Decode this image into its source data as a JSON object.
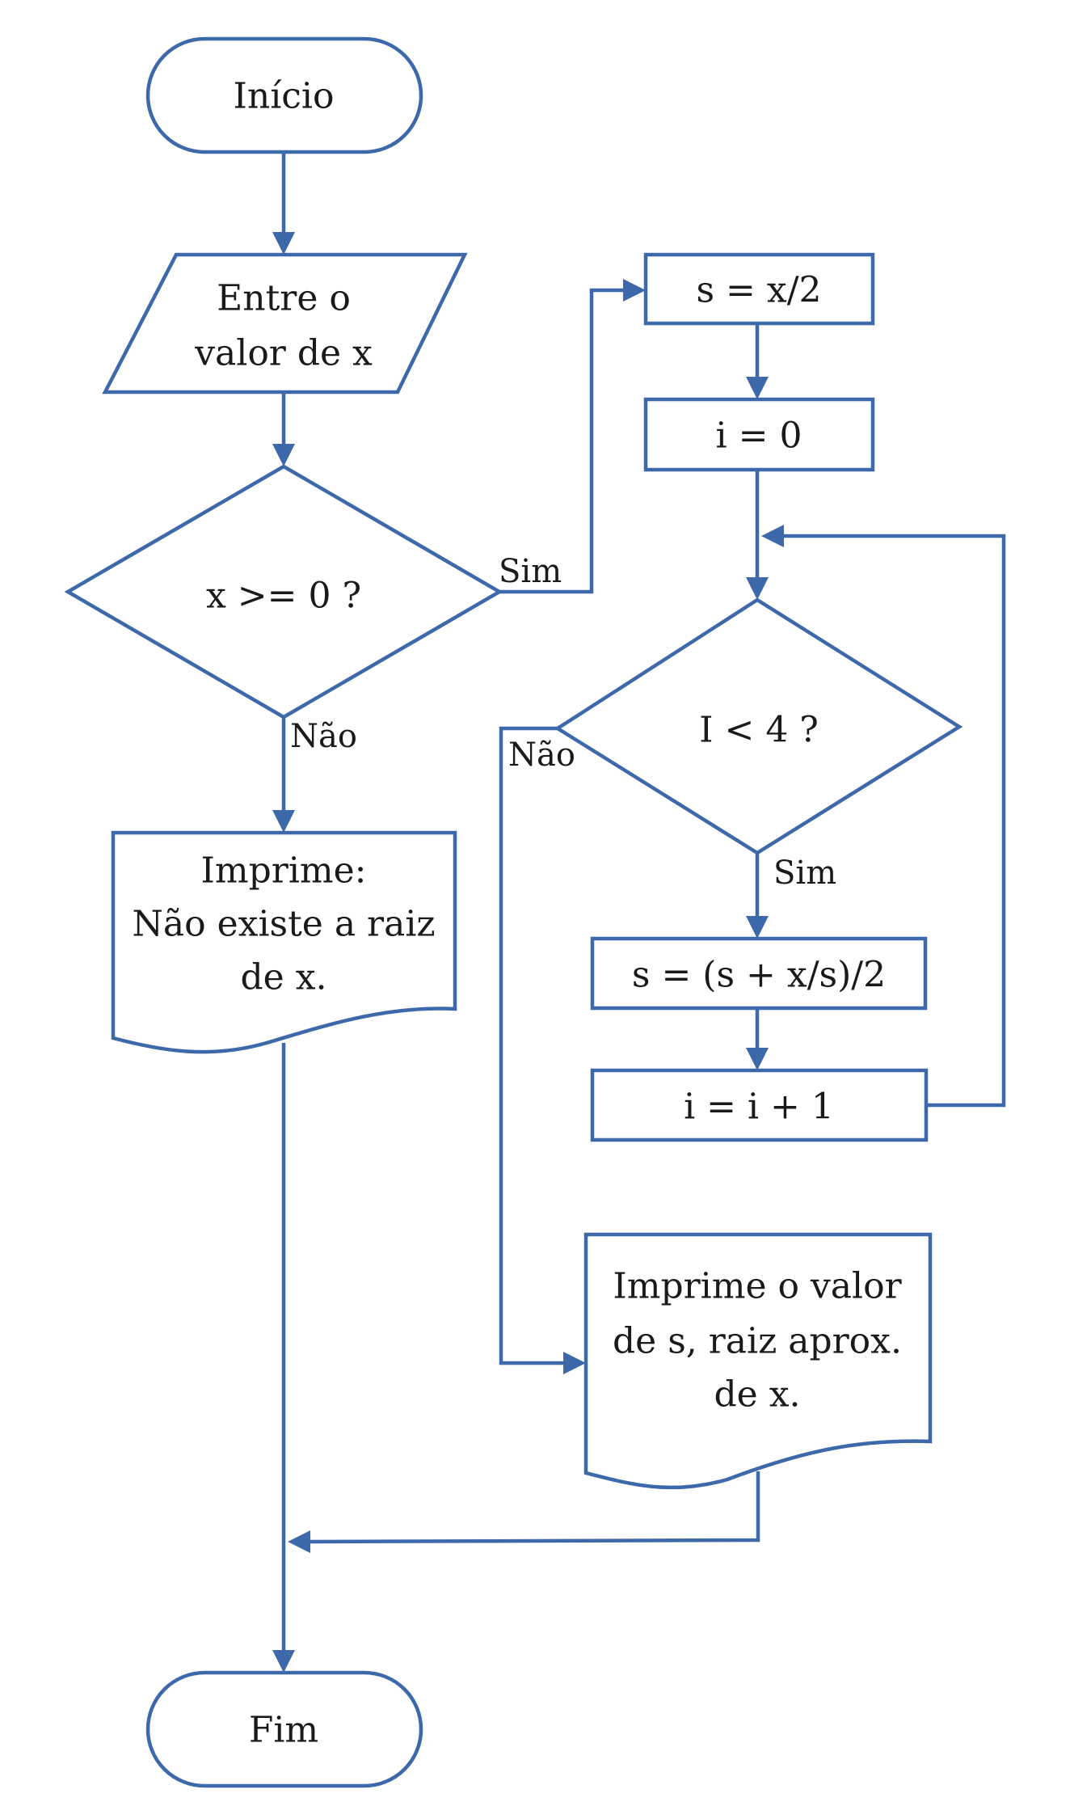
{
  "colors": {
    "stroke": "#3d69aa",
    "fill": "#ffffff",
    "text": "#1a1a1a"
  },
  "nodes": {
    "start": "Início",
    "input_line1": "Entre o",
    "input_line2": "valor de x",
    "decision_x": "x >= 0 ?",
    "print_no_root_line1": "Imprime:",
    "print_no_root_line2": "Não existe a raiz",
    "print_no_root_line3": "de x.",
    "assign_s": "s = x/2",
    "assign_i": "i = 0",
    "decision_i": "I < 4 ?",
    "update_s": "s = (s + x/s)/2",
    "increment_i": "i = i + 1",
    "print_result_line1": "Imprime o valor",
    "print_result_line2": "de s, raiz aprox.",
    "print_result_line3": "de x.",
    "end": "Fim"
  },
  "edge_labels": {
    "x_yes": "Sim",
    "x_no": "Não",
    "i_yes": "Sim",
    "i_no": "Não"
  }
}
